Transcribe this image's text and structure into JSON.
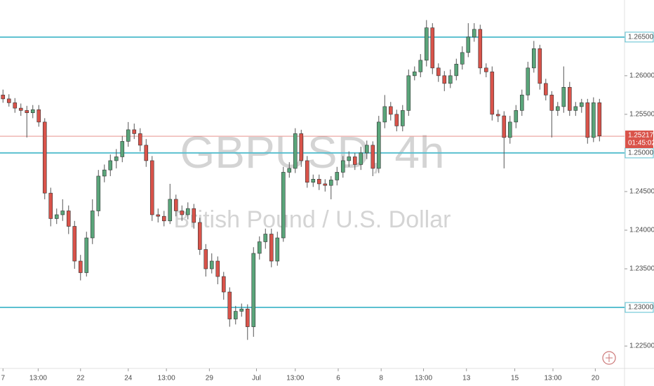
{
  "chart_data": {
    "type": "candlestick",
    "watermark": "GBPUSD, 4h",
    "subtitle": "British Pound / U.S. Dollar",
    "up_color": "#5aa57a",
    "down_color": "#d9534a",
    "level_color": "#5bc0d0",
    "xlim": [
      -0.5,
      104.2
    ],
    "ylim": [
      1.2221,
      1.2698
    ],
    "yticks": [
      {
        "value": 1.225,
        "label": "1.22500"
      },
      {
        "value": 1.235,
        "label": "1.23500"
      },
      {
        "value": 1.24,
        "label": "1.24000"
      },
      {
        "value": 1.245,
        "label": "1.24500"
      },
      {
        "value": 1.255,
        "label": "1.25500"
      },
      {
        "value": 1.26,
        "label": "1.26000"
      }
    ],
    "levels": [
      {
        "value": 1.265,
        "label": "1.26500"
      },
      {
        "value": 1.25,
        "label": "1.25000"
      },
      {
        "value": 1.23,
        "label": "1.23000"
      }
    ],
    "last_price": {
      "value": 1.25217,
      "label": "1.25217"
    },
    "countdown": "01:45:02",
    "xticks": [
      {
        "value": 0,
        "label": "7"
      },
      {
        "value": 5.9,
        "label": "13:00"
      },
      {
        "value": 13,
        "label": "22"
      },
      {
        "value": 21,
        "label": "24"
      },
      {
        "value": 27.4,
        "label": "13:00"
      },
      {
        "value": 34.6,
        "label": "29"
      },
      {
        "value": 42.5,
        "label": "Jul"
      },
      {
        "value": 49,
        "label": "13:00"
      },
      {
        "value": 56.2,
        "label": "6"
      },
      {
        "value": 63.4,
        "label": "8"
      },
      {
        "value": 70.5,
        "label": "13:00"
      },
      {
        "value": 77.7,
        "label": "13"
      },
      {
        "value": 85.8,
        "label": "15"
      },
      {
        "value": 92.2,
        "label": "13:00"
      },
      {
        "value": 99.3,
        "label": "20"
      }
    ],
    "ohlc": [
      [
        1.2575,
        1.2582,
        1.2565,
        1.257
      ],
      [
        1.257,
        1.2576,
        1.256,
        1.2565
      ],
      [
        1.2565,
        1.2571,
        1.2552,
        1.2558
      ],
      [
        1.2558,
        1.2564,
        1.2548,
        1.2555
      ],
      [
        1.2555,
        1.2561,
        1.252,
        1.2552
      ],
      [
        1.2552,
        1.2562,
        1.2545,
        1.2556
      ],
      [
        1.2556,
        1.2562,
        1.2534,
        1.254
      ],
      [
        1.254,
        1.2545,
        1.244,
        1.2448
      ],
      [
        1.2448,
        1.2455,
        1.2405,
        1.2415
      ],
      [
        1.2415,
        1.2428,
        1.2408,
        1.242
      ],
      [
        1.242,
        1.244,
        1.2412,
        1.2425
      ],
      [
        1.2425,
        1.2432,
        1.2395,
        1.2405
      ],
      [
        1.2405,
        1.2412,
        1.235,
        1.236
      ],
      [
        1.236,
        1.2368,
        1.2335,
        1.2345
      ],
      [
        1.2345,
        1.2398,
        1.234,
        1.239
      ],
      [
        1.239,
        1.244,
        1.2382,
        1.2425
      ],
      [
        1.2425,
        1.2478,
        1.2418,
        1.247
      ],
      [
        1.247,
        1.2485,
        1.2462,
        1.2478
      ],
      [
        1.2478,
        1.2498,
        1.247,
        1.249
      ],
      [
        1.249,
        1.2505,
        1.248,
        1.2495
      ],
      [
        1.2495,
        1.2522,
        1.2488,
        1.2515
      ],
      [
        1.2515,
        1.254,
        1.2508,
        1.253
      ],
      [
        1.253,
        1.2538,
        1.2518,
        1.2525
      ],
      [
        1.2525,
        1.2532,
        1.2502,
        1.251
      ],
      [
        1.251,
        1.2518,
        1.2482,
        1.249
      ],
      [
        1.249,
        1.2496,
        1.2412,
        1.242
      ],
      [
        1.242,
        1.2428,
        1.241,
        1.2418
      ],
      [
        1.2418,
        1.2425,
        1.2405,
        1.2412
      ],
      [
        1.2412,
        1.246,
        1.2408,
        1.244
      ],
      [
        1.244,
        1.2446,
        1.2418,
        1.2425
      ],
      [
        1.2425,
        1.2432,
        1.2412,
        1.242
      ],
      [
        1.242,
        1.2436,
        1.2414,
        1.2428
      ],
      [
        1.2428,
        1.2434,
        1.2402,
        1.241
      ],
      [
        1.241,
        1.2416,
        1.2368,
        1.2375
      ],
      [
        1.2375,
        1.2382,
        1.234,
        1.235
      ],
      [
        1.235,
        1.237,
        1.2344,
        1.236
      ],
      [
        1.236,
        1.2366,
        1.233,
        1.234
      ],
      [
        1.234,
        1.2346,
        1.231,
        1.232
      ],
      [
        1.232,
        1.2326,
        1.2275,
        1.2285
      ],
      [
        1.2285,
        1.2302,
        1.2278,
        1.2295
      ],
      [
        1.2295,
        1.2305,
        1.2288,
        1.2298
      ],
      [
        1.2298,
        1.2304,
        1.2258,
        1.2275
      ],
      [
        1.2275,
        1.2378,
        1.2262,
        1.237
      ],
      [
        1.237,
        1.2392,
        1.2362,
        1.2385
      ],
      [
        1.2385,
        1.2402,
        1.2376,
        1.2395
      ],
      [
        1.2395,
        1.2402,
        1.2352,
        1.236
      ],
      [
        1.236,
        1.2398,
        1.2354,
        1.239
      ],
      [
        1.239,
        1.2482,
        1.2385,
        1.2475
      ],
      [
        1.2475,
        1.2488,
        1.2468,
        1.248
      ],
      [
        1.248,
        1.2532,
        1.2474,
        1.2525
      ],
      [
        1.2525,
        1.253,
        1.2482,
        1.249
      ],
      [
        1.249,
        1.2496,
        1.2455,
        1.2462
      ],
      [
        1.2462,
        1.2472,
        1.2456,
        1.2466
      ],
      [
        1.2466,
        1.2472,
        1.2452,
        1.246
      ],
      [
        1.246,
        1.2466,
        1.245,
        1.2458
      ],
      [
        1.2458,
        1.247,
        1.244,
        1.2465
      ],
      [
        1.2465,
        1.2482,
        1.2458,
        1.2475
      ],
      [
        1.2475,
        1.2496,
        1.2468,
        1.249
      ],
      [
        1.249,
        1.2502,
        1.2482,
        1.2495
      ],
      [
        1.2495,
        1.25,
        1.2478,
        1.2485
      ],
      [
        1.2485,
        1.2508,
        1.2478,
        1.25
      ],
      [
        1.25,
        1.2516,
        1.2492,
        1.251
      ],
      [
        1.251,
        1.2515,
        1.247,
        1.248
      ],
      [
        1.248,
        1.2548,
        1.2474,
        1.254
      ],
      [
        1.254,
        1.2575,
        1.2532,
        1.256
      ],
      [
        1.256,
        1.2566,
        1.2542,
        1.255
      ],
      [
        1.255,
        1.2556,
        1.2528,
        1.2535
      ],
      [
        1.2535,
        1.2562,
        1.2528,
        1.2555
      ],
      [
        1.2555,
        1.2608,
        1.2548,
        1.26
      ],
      [
        1.26,
        1.2612,
        1.2594,
        1.2605
      ],
      [
        1.2605,
        1.2628,
        1.2598,
        1.262
      ],
      [
        1.262,
        1.2672,
        1.2612,
        1.2662
      ],
      [
        1.2662,
        1.2668,
        1.2602,
        1.261
      ],
      [
        1.261,
        1.2616,
        1.2592,
        1.26
      ],
      [
        1.26,
        1.2606,
        1.258,
        1.259
      ],
      [
        1.259,
        1.2608,
        1.2584,
        1.26
      ],
      [
        1.26,
        1.2622,
        1.2594,
        1.2615
      ],
      [
        1.2615,
        1.2638,
        1.2608,
        1.263
      ],
      [
        1.263,
        1.2668,
        1.2624,
        1.265
      ],
      [
        1.265,
        1.2668,
        1.2644,
        1.266
      ],
      [
        1.266,
        1.2666,
        1.2602,
        1.261
      ],
      [
        1.261,
        1.2616,
        1.2598,
        1.2605
      ],
      [
        1.2605,
        1.2612,
        1.2542,
        1.255
      ],
      [
        1.255,
        1.2556,
        1.254,
        1.2548
      ],
      [
        1.2548,
        1.2554,
        1.248,
        1.252
      ],
      [
        1.252,
        1.2548,
        1.2512,
        1.254
      ],
      [
        1.254,
        1.2562,
        1.2532,
        1.2555
      ],
      [
        1.2555,
        1.2582,
        1.2548,
        1.2575
      ],
      [
        1.2575,
        1.2618,
        1.2568,
        1.261
      ],
      [
        1.261,
        1.2645,
        1.2604,
        1.2635
      ],
      [
        1.2635,
        1.264,
        1.2582,
        1.259
      ],
      [
        1.259,
        1.2596,
        1.2568,
        1.2575
      ],
      [
        1.2575,
        1.258,
        1.252,
        1.2555
      ],
      [
        1.2555,
        1.2566,
        1.2548,
        1.256
      ],
      [
        1.256,
        1.2612,
        1.2552,
        1.2585
      ],
      [
        1.2585,
        1.2592,
        1.2548,
        1.2555
      ],
      [
        1.2555,
        1.2566,
        1.2548,
        1.256
      ],
      [
        1.256,
        1.257,
        1.2552,
        1.2565
      ],
      [
        1.2565,
        1.257,
        1.2512,
        1.252
      ],
      [
        1.252,
        1.2572,
        1.2514,
        1.2565
      ],
      [
        1.2565,
        1.257,
        1.2515,
        1.2522
      ]
    ]
  }
}
